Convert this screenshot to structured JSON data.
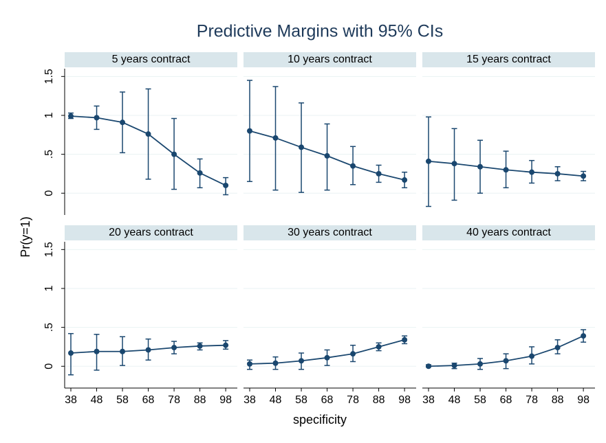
{
  "chart_data": {
    "type": "line",
    "title": "Predictive Margins with 95% CIs",
    "xlabel": "specificity",
    "ylabel": "Pr(y=1)",
    "color": "#1a476f",
    "grid": true,
    "x": [
      38,
      48,
      58,
      68,
      78,
      88,
      98
    ],
    "xticks": [
      38,
      48,
      58,
      68,
      78,
      88,
      98
    ],
    "xlim": [
      35.6,
      102.5
    ],
    "ylim": [
      -0.28,
      1.6
    ],
    "yticks": [
      0,
      {
        "value": 0.5,
        "label": ".5"
      },
      1,
      1.5
    ],
    "panels": [
      {
        "title": "5 years contract",
        "values": [
          0.99,
          0.97,
          0.91,
          0.76,
          0.5,
          0.26,
          0.1
        ],
        "lower": [
          0.96,
          0.82,
          0.52,
          0.18,
          0.05,
          0.07,
          -0.02
        ],
        "upper": [
          1.03,
          1.12,
          1.3,
          1.34,
          0.96,
          0.44,
          0.2
        ]
      },
      {
        "title": "10 years contract",
        "values": [
          0.8,
          0.71,
          0.59,
          0.48,
          0.35,
          0.25,
          0.17
        ],
        "lower": [
          0.15,
          0.04,
          0.01,
          0.04,
          0.11,
          0.14,
          0.07
        ],
        "upper": [
          1.45,
          1.37,
          1.16,
          0.89,
          0.6,
          0.36,
          0.27
        ]
      },
      {
        "title": "15 years contract",
        "values": [
          0.41,
          0.38,
          0.34,
          0.3,
          0.27,
          0.25,
          0.22
        ],
        "lower": [
          -0.17,
          -0.09,
          0.0,
          0.07,
          0.13,
          0.16,
          0.16
        ],
        "upper": [
          0.98,
          0.83,
          0.68,
          0.54,
          0.42,
          0.34,
          0.28
        ]
      },
      {
        "title": "20 years contract",
        "values": [
          0.17,
          0.19,
          0.19,
          0.21,
          0.24,
          0.26,
          0.27
        ],
        "lower": [
          -0.11,
          -0.05,
          0.01,
          0.08,
          0.16,
          0.21,
          0.22
        ],
        "upper": [
          0.42,
          0.41,
          0.38,
          0.35,
          0.32,
          0.3,
          0.33
        ]
      },
      {
        "title": "30 years contract",
        "values": [
          0.03,
          0.04,
          0.07,
          0.11,
          0.16,
          0.25,
          0.34
        ],
        "lower": [
          -0.04,
          -0.04,
          -0.04,
          0.01,
          0.06,
          0.2,
          0.29
        ],
        "upper": [
          0.08,
          0.12,
          0.17,
          0.21,
          0.27,
          0.3,
          0.39
        ]
      },
      {
        "title": "40 years contract",
        "values": [
          0.0,
          0.01,
          0.03,
          0.07,
          0.13,
          0.24,
          0.39
        ],
        "lower": [
          -0.01,
          -0.03,
          -0.04,
          -0.03,
          0.03,
          0.16,
          0.31
        ],
        "upper": [
          0.02,
          0.04,
          0.1,
          0.16,
          0.25,
          0.34,
          0.47
        ]
      }
    ]
  }
}
